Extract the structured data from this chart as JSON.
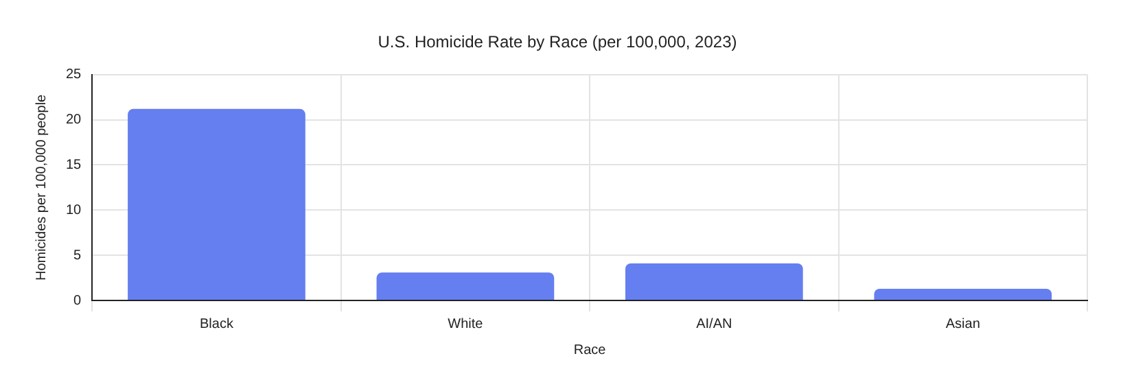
{
  "chart_data": {
    "type": "bar",
    "title": "U.S. Homicide Rate by Race (per 100,000, 2023)",
    "xlabel": "Race",
    "ylabel": "Homicides per 100,000 people",
    "categories": [
      "Black",
      "White",
      "AI/AN",
      "Asian"
    ],
    "values": [
      21.2,
      3.1,
      4.1,
      1.3
    ],
    "color": "#657ef0",
    "ylim": [
      0,
      25
    ],
    "yticks": [
      0,
      5,
      10,
      15,
      20,
      25
    ],
    "grid": true,
    "legend": false
  }
}
